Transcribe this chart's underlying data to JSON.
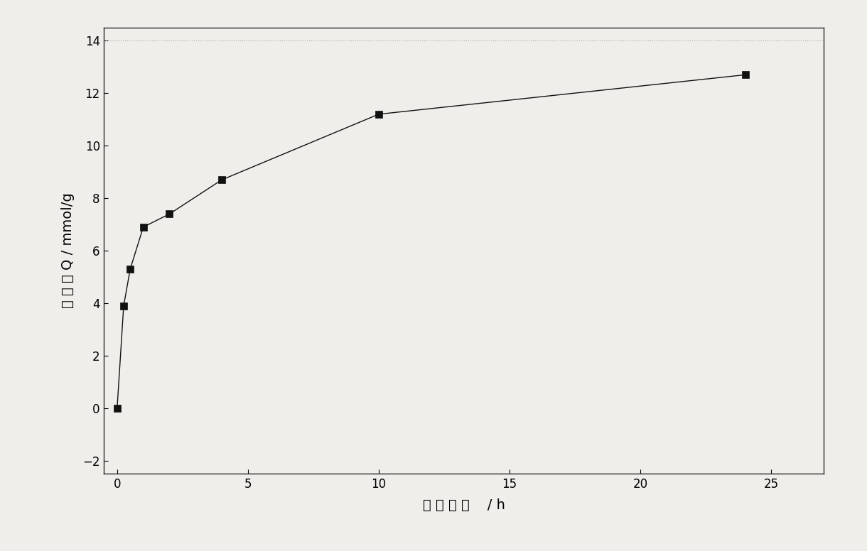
{
  "x": [
    0,
    0.25,
    0.5,
    1,
    2,
    4,
    10,
    24
  ],
  "y": [
    0,
    3.9,
    5.3,
    6.9,
    7.4,
    8.7,
    11.2,
    12.7
  ],
  "xlabel": "吸 附 时 间    / h",
  "ylabel_lines": [
    "吸",
    " ",
    "附",
    " ",
    "量 Q / mmol/g"
  ],
  "ylabel_text": "吸 附 量 Q / mmol/g",
  "xlim": [
    -0.5,
    27
  ],
  "ylim": [
    -2.5,
    14.5
  ],
  "xticks": [
    0,
    5,
    10,
    15,
    20,
    25
  ],
  "yticks": [
    -2,
    0,
    2,
    4,
    6,
    8,
    10,
    12,
    14
  ],
  "marker": "s",
  "marker_color": "#111111",
  "marker_size": 7,
  "line_color": "#111111",
  "line_width": 1.0,
  "background_color": "#f0eeea",
  "axis_fontsize": 14,
  "tick_fontsize": 12,
  "dotted_line_y": 14,
  "dotted_line_color": "#aaaaaa",
  "dotted_line_style": ":"
}
